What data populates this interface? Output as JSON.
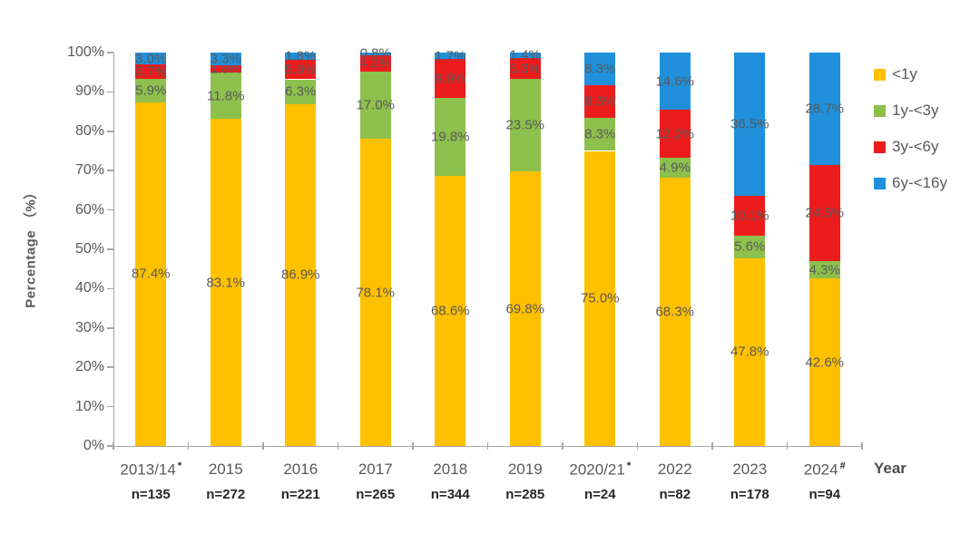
{
  "figure": {
    "y_axis_title": "Percentage （%）",
    "x_axis_title": "Year"
  },
  "chart_data": {
    "type": "bar",
    "stacked": true,
    "orientation": "vertical",
    "title": "",
    "ylabel": "Percentage （%）",
    "xlabel": "Year",
    "ylim": [
      0,
      100
    ],
    "ytick_step": 10,
    "ytick_suffix": "%",
    "grid": false,
    "legend_position": "right",
    "value_suffix": "%",
    "categories": [
      {
        "label": "2013/14",
        "marker": "*",
        "n_label": "n=135"
      },
      {
        "label": "2015",
        "marker": "",
        "n_label": "n=272"
      },
      {
        "label": "2016",
        "marker": "",
        "n_label": "n=221"
      },
      {
        "label": "2017",
        "marker": "",
        "n_label": "n=265"
      },
      {
        "label": "2018",
        "marker": "",
        "n_label": "n=344"
      },
      {
        "label": "2019",
        "marker": "",
        "n_label": "n=285"
      },
      {
        "label": "2020/21",
        "marker": "*",
        "n_label": "n=24"
      },
      {
        "label": "2022",
        "marker": "",
        "n_label": "n=82"
      },
      {
        "label": "2023",
        "marker": "",
        "n_label": "n=178"
      },
      {
        "label": "2024",
        "marker": "#",
        "n_label": "n=94"
      }
    ],
    "series": [
      {
        "name": "<1y",
        "color": "#FFC000",
        "values": [
          87.4,
          83.1,
          86.9,
          78.1,
          68.6,
          69.8,
          75.0,
          68.3,
          47.8,
          42.6
        ]
      },
      {
        "name": "1y-<3y",
        "color": "#8DC04D",
        "values": [
          5.9,
          11.8,
          6.3,
          17.0,
          19.8,
          23.5,
          8.3,
          4.9,
          5.6,
          4.3
        ]
      },
      {
        "name": "3y-<6y",
        "color": "#EC1C1D",
        "values": [
          3.7,
          1.8,
          5.0,
          4.2,
          9.9,
          5.3,
          8.3,
          12.2,
          10.1,
          24.5
        ]
      },
      {
        "name": "6y-<16y",
        "color": "#2090DC",
        "values": [
          3.0,
          3.3,
          1.8,
          0.8,
          1.7,
          1.4,
          8.3,
          14.6,
          36.5,
          28.7
        ]
      }
    ],
    "colors": {
      "axis": "#A6A6A6",
      "tick_label": "#595959",
      "segment_label": "#595959",
      "category_label": "#595959",
      "n_label": "#262626",
      "axis_title": "#595959"
    }
  }
}
